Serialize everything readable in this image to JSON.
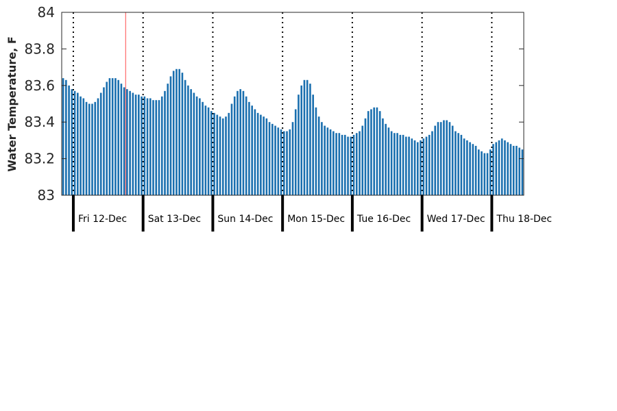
{
  "chart_data": {
    "type": "bar",
    "title": "",
    "xlabel": "",
    "ylabel": "Water Temperature, F",
    "ylim": [
      83,
      84
    ],
    "yticks": [
      83,
      83.2,
      83.4,
      83.6,
      83.8,
      84
    ],
    "ytick_labels": [
      "83",
      "83.2",
      "83.4",
      "83.6",
      "83.8",
      "84"
    ],
    "grid": false,
    "legend": "none",
    "bar_color": "#1a6faf",
    "marker_color": "#ff4b4b",
    "x_start": "2025-12-11 20:00",
    "x_interval": "1 hour",
    "current_time": "2025-12-12 18:00",
    "day_labels": [
      "Fri 12-Dec",
      "Sat 13-Dec",
      "Sun 14-Dec",
      "Mon 15-Dec",
      "Tue 16-Dec",
      "Wed 17-Dec",
      "Thu 18-Dec"
    ],
    "values": [
      83.64,
      83.63,
      83.6,
      83.58,
      83.57,
      83.56,
      83.54,
      83.53,
      83.51,
      83.5,
      83.5,
      83.51,
      83.53,
      83.56,
      83.59,
      83.62,
      83.64,
      83.64,
      83.64,
      83.63,
      83.61,
      83.59,
      83.58,
      83.57,
      83.56,
      83.55,
      83.55,
      83.54,
      83.54,
      83.53,
      83.53,
      83.52,
      83.52,
      83.52,
      83.54,
      83.57,
      83.61,
      83.65,
      83.68,
      83.69,
      83.69,
      83.67,
      83.63,
      83.6,
      83.58,
      83.56,
      83.54,
      83.53,
      83.51,
      83.49,
      83.48,
      83.46,
      83.45,
      83.44,
      83.43,
      83.42,
      83.43,
      83.45,
      83.5,
      83.54,
      83.57,
      83.58,
      83.57,
      83.54,
      83.51,
      83.49,
      83.47,
      83.45,
      83.44,
      83.43,
      83.42,
      83.4,
      83.39,
      83.38,
      83.37,
      83.36,
      83.35,
      83.35,
      83.36,
      83.4,
      83.47,
      83.55,
      83.6,
      83.63,
      83.63,
      83.61,
      83.55,
      83.48,
      83.43,
      83.4,
      83.38,
      83.37,
      83.36,
      83.35,
      83.34,
      83.34,
      83.33,
      83.33,
      83.32,
      83.32,
      83.33,
      83.34,
      83.35,
      83.38,
      83.42,
      83.46,
      83.47,
      83.48,
      83.48,
      83.46,
      83.42,
      83.39,
      83.37,
      83.35,
      83.34,
      83.34,
      83.33,
      83.33,
      83.32,
      83.32,
      83.31,
      83.3,
      83.29,
      83.3,
      83.31,
      83.32,
      83.33,
      83.35,
      83.38,
      83.4,
      83.4,
      83.41,
      83.41,
      83.4,
      83.38,
      83.35,
      83.34,
      83.33,
      83.31,
      83.3,
      83.29,
      83.28,
      83.27,
      83.25,
      83.24,
      83.23,
      83.23,
      83.25,
      83.28,
      83.29,
      83.3,
      83.31,
      83.3,
      83.29,
      83.28,
      83.27,
      83.27,
      83.26,
      83.25
    ]
  }
}
